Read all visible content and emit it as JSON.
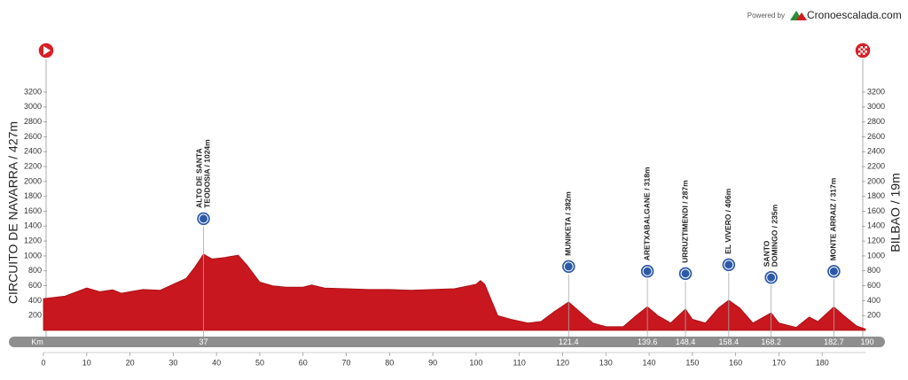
{
  "chart_data": {
    "type": "area",
    "powered_by": "Powered by",
    "brand": "Cronoescalada.com",
    "start_label": "CIRCUITO DE NAVARRA / 427m",
    "finish_label": "BILBAO / 19m",
    "x_unit": "Km",
    "color": "#c8171e",
    "x": [
      0,
      5,
      10,
      13,
      16,
      18,
      20,
      23,
      27,
      30,
      33,
      35,
      37,
      39,
      42,
      45,
      47,
      50,
      53,
      56,
      60,
      62,
      65,
      70,
      75,
      80,
      85,
      90,
      95,
      100,
      101,
      102,
      105,
      108,
      112,
      115,
      118,
      121.4,
      124,
      127,
      130,
      134,
      136,
      137,
      139.6,
      142,
      145,
      148.4,
      150,
      153,
      156,
      158.4,
      161,
      164,
      168.2,
      170,
      174,
      177,
      179,
      182.7,
      185,
      188,
      190
    ],
    "values": [
      427,
      460,
      570,
      520,
      545,
      500,
      520,
      550,
      540,
      620,
      700,
      850,
      1024,
      960,
      980,
      1010,
      880,
      650,
      600,
      580,
      580,
      610,
      570,
      560,
      550,
      550,
      540,
      550,
      560,
      620,
      670,
      620,
      200,
      150,
      100,
      120,
      250,
      382,
      250,
      100,
      50,
      50,
      150,
      200,
      318,
      200,
      100,
      287,
      150,
      100,
      300,
      406,
      300,
      100,
      235,
      100,
      40,
      180,
      120,
      317,
      200,
      60,
      19
    ],
    "climbs": [
      {
        "km": 37,
        "label_lines": [
          "ALTO DE SANTA",
          "TEODOSIA / 1024m"
        ]
      },
      {
        "km": 121.4,
        "label_lines": [
          "MUNIKETA / 382m"
        ]
      },
      {
        "km": 139.6,
        "label_lines": [
          "ARETXABALGANE / 318m"
        ]
      },
      {
        "km": 148.4,
        "label_lines": [
          "URRUZTIMENDI / 287m"
        ]
      },
      {
        "km": 158.4,
        "label_lines": [
          "EL VIVERO / 406m"
        ]
      },
      {
        "km": 168.2,
        "label_lines": [
          "SANTO",
          "DOMINGO / 235m"
        ]
      },
      {
        "km": 182.7,
        "label_lines": [
          "MONTE ARRAIZ / 317m"
        ]
      }
    ],
    "xlim": [
      0,
      190
    ],
    "xticks": [
      0,
      10,
      20,
      30,
      40,
      50,
      60,
      70,
      80,
      90,
      100,
      110,
      120,
      130,
      140,
      150,
      160,
      170,
      180
    ],
    "ylim": [
      0,
      3200
    ],
    "yticks": [
      200,
      400,
      600,
      800,
      1000,
      1200,
      1400,
      1600,
      1800,
      2000,
      2200,
      2400,
      2600,
      2800,
      3000,
      3200
    ]
  }
}
